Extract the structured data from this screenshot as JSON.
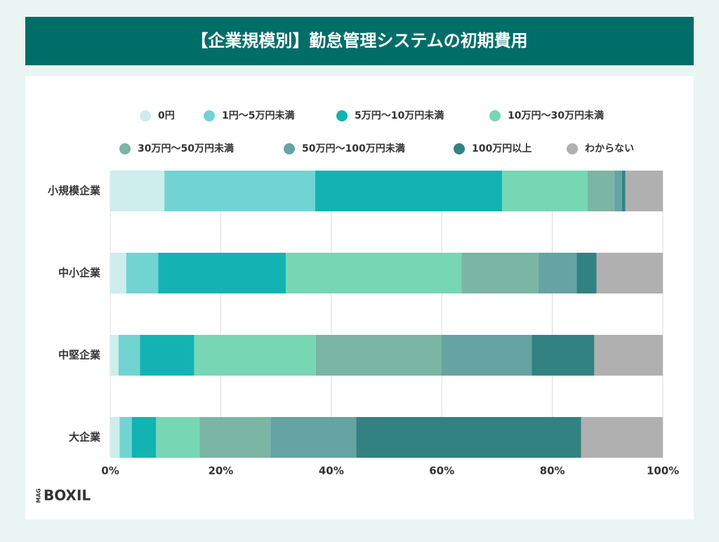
{
  "chart_data": {
    "type": "stacked_barh",
    "title": "【企業規模別】勤怠管理システムの初期費用",
    "logo": "BOXIL",
    "logo_prefix": "MAG",
    "categories": [
      "小規模企業",
      "中小企業",
      "中堅企業",
      "大企業"
    ],
    "series": [
      {
        "name": "0円",
        "color": "#cdeeed",
        "values": [
          9.8,
          2.9,
          1.5,
          1.7
        ]
      },
      {
        "name": "1円〜5万円未満",
        "color": "#72d3d3",
        "values": [
          27.3,
          5.8,
          3.9,
          2.2
        ]
      },
      {
        "name": "5万円〜10万円未満",
        "color": "#14b3b3",
        "values": [
          33.8,
          23.1,
          9.8,
          4.4
        ]
      },
      {
        "name": "10万円〜30万円未満",
        "color": "#77d6b4",
        "values": [
          15.5,
          31.8,
          22.0,
          7.9
        ]
      },
      {
        "name": "30万円〜50万円未満",
        "color": "#7bb5a3",
        "values": [
          4.8,
          13.9,
          22.7,
          12.8
        ]
      },
      {
        "name": "50万円〜100万円未満",
        "color": "#66a3a3",
        "values": [
          1.4,
          6.9,
          16.4,
          15.5
        ]
      },
      {
        "name": "100万円以上",
        "color": "#338282",
        "values": [
          0.6,
          3.6,
          11.3,
          40.7
        ]
      },
      {
        "name": "わからない",
        "color": "#b0b0b0",
        "values": [
          6.8,
          12.0,
          12.4,
          14.8
        ]
      }
    ],
    "xlim": [
      0,
      100
    ],
    "xticks": [
      {
        "value": 0,
        "label": "0%"
      },
      {
        "value": 20,
        "label": "20%"
      },
      {
        "value": 40,
        "label": "40%"
      },
      {
        "value": 60,
        "label": "60%"
      },
      {
        "value": 80,
        "label": "80%"
      },
      {
        "value": 100,
        "label": "100%"
      }
    ],
    "grid": true
  }
}
